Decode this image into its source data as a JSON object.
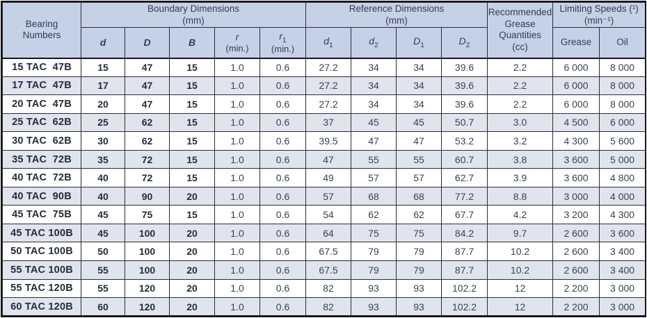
{
  "table": {
    "bearing_header": "Bearing\nNumbers",
    "groups": {
      "boundary": "Boundary Dimensions\n(mm)",
      "reference": "Reference Dimensions\n(mm)",
      "grease": "Recommended\nGrease\nQuantities\n(cc)",
      "speeds": "Limiting Speeds (¹)\n(min⁻¹)"
    },
    "subheaders": [
      {
        "sym": "d",
        "sub": "",
        "note": ""
      },
      {
        "sym": "D",
        "sub": "",
        "note": ""
      },
      {
        "sym": "B",
        "sub": "",
        "note": ""
      },
      {
        "sym": "r",
        "sub": "",
        "note": "(min.)"
      },
      {
        "sym": "r",
        "sub": "1",
        "note": "(min.)"
      },
      {
        "sym": "d",
        "sub": "1",
        "note": ""
      },
      {
        "sym": "d",
        "sub": "2",
        "note": ""
      },
      {
        "sym": "D",
        "sub": "1",
        "note": ""
      },
      {
        "sym": "D",
        "sub": "2",
        "note": ""
      },
      {
        "sym": "Grease",
        "sub": "",
        "note": ""
      },
      {
        "sym": "Oil",
        "sub": "",
        "note": ""
      }
    ],
    "rows": [
      [
        "15 TAC  47B",
        "15",
        "47",
        "15",
        "1.0",
        "0.6",
        "27.2",
        "34",
        "34",
        "39.6",
        "2.2",
        "6 000",
        "8 000"
      ],
      [
        "17 TAC  47B",
        "17",
        "47",
        "15",
        "1.0",
        "0.6",
        "27.2",
        "34",
        "34",
        "39.6",
        "2.2",
        "6 000",
        "8 000"
      ],
      [
        "20 TAC  47B",
        "20",
        "47",
        "15",
        "1.0",
        "0.6",
        "27.2",
        "34",
        "34",
        "39.6",
        "2.2",
        "6 000",
        "8 000"
      ],
      [
        "25 TAC  62B",
        "25",
        "62",
        "15",
        "1.0",
        "0.6",
        "37",
        "45",
        "45",
        "50.7",
        "3.0",
        "4 500",
        "6 000"
      ],
      [
        "30 TAC  62B",
        "30",
        "62",
        "15",
        "1.0",
        "0.6",
        "39.5",
        "47",
        "47",
        "53.2",
        "3.2",
        "4 300",
        "5 600"
      ],
      [
        "35 TAC  72B",
        "35",
        "72",
        "15",
        "1.0",
        "0.6",
        "47",
        "55",
        "55",
        "60.7",
        "3.8",
        "3 600",
        "5 000"
      ],
      [
        "40 TAC  72B",
        "40",
        "72",
        "15",
        "1.0",
        "0.6",
        "49",
        "57",
        "57",
        "62.7",
        "3.9",
        "3 600",
        "4 800"
      ],
      [
        "40 TAC  90B",
        "40",
        "90",
        "20",
        "1.0",
        "0.6",
        "57",
        "68",
        "68",
        "77.2",
        "8.8",
        "3 000",
        "4 000"
      ],
      [
        "45 TAC  75B",
        "45",
        "75",
        "15",
        "1.0",
        "0.6",
        "54",
        "62",
        "62",
        "67.7",
        "4.2",
        "3 200",
        "4 300"
      ],
      [
        "45 TAC 100B",
        "45",
        "100",
        "20",
        "1.0",
        "0.6",
        "64",
        "75",
        "75",
        "84.2",
        "9.7",
        "2 600",
        "3 600"
      ],
      [
        "50 TAC 100B",
        "50",
        "100",
        "20",
        "1.0",
        "0.6",
        "67.5",
        "79",
        "79",
        "87.7",
        "10.2",
        "2 600",
        "3 400"
      ],
      [
        "55 TAC 100B",
        "55",
        "100",
        "20",
        "1.0",
        "0.6",
        "67.5",
        "79",
        "79",
        "87.7",
        "10.2",
        "2 600",
        "3 400"
      ],
      [
        "55 TAC 120B",
        "55",
        "120",
        "20",
        "1.0",
        "0.6",
        "82",
        "93",
        "93",
        "102.2",
        "12",
        "2 200",
        "3 000"
      ],
      [
        "60 TAC 120B",
        "60",
        "120",
        "20",
        "1.0",
        "0.6",
        "82",
        "93",
        "93",
        "102.2",
        "12",
        "2 200",
        "3 000"
      ]
    ],
    "colors": {
      "header_bg": "#c5d1e6",
      "stripe_bg": "#e0e4ef",
      "header_text": "#333d52",
      "data_text": "#3a4150",
      "border": "#161616"
    }
  }
}
